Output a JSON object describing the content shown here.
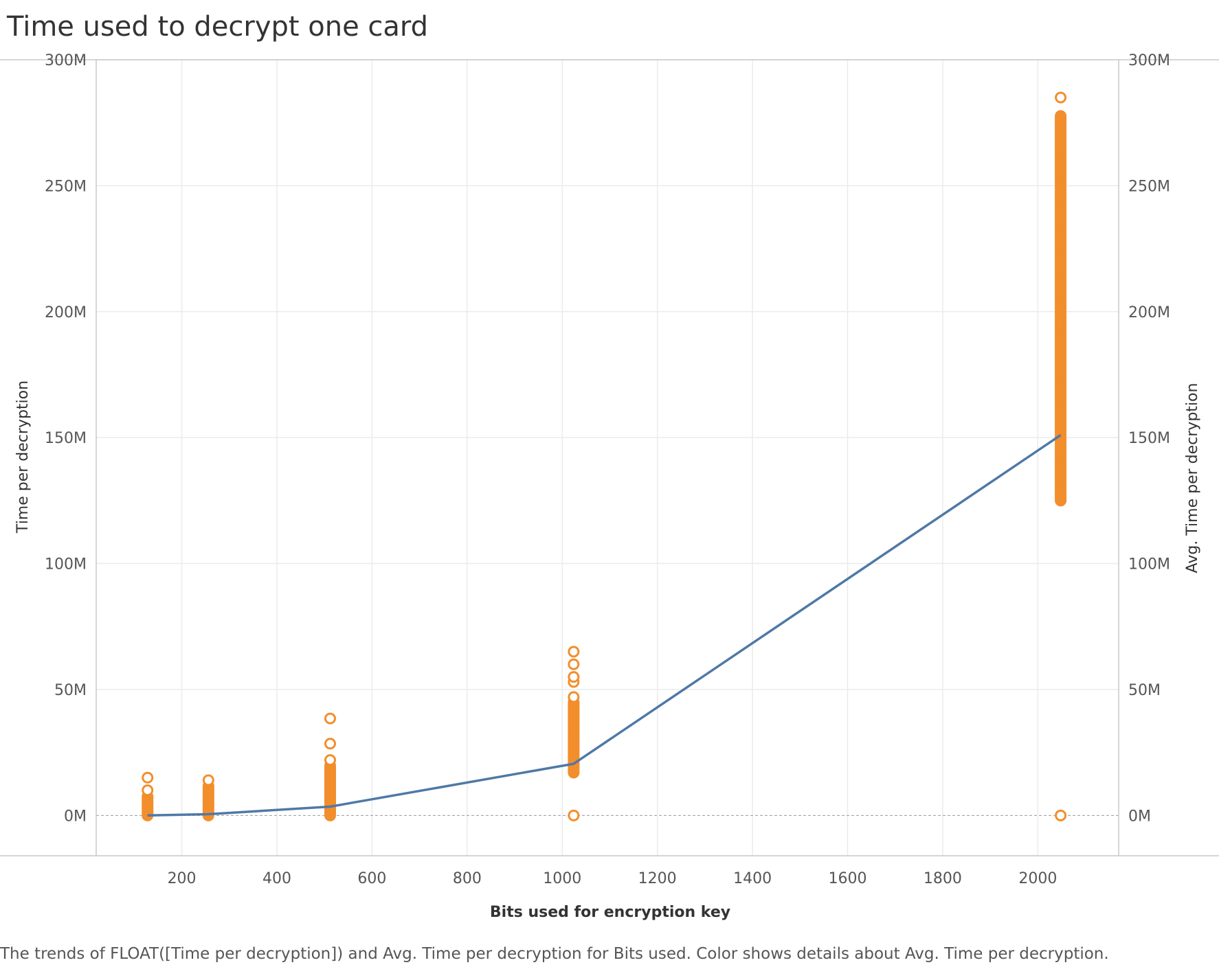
{
  "page_title": "Time used to decrypt one card",
  "caption": "The trends of FLOAT([Time per decryption]) and Avg. Time per decryption for Bits used.  Color shows details about Avg. Time per decryption.",
  "chart_data": {
    "type": "scatter",
    "title": "Time used to decrypt one card",
    "xlabel": "Bits used for encryption key",
    "ylabel": "Time per decryption",
    "y2label": "Avg. Time per decryption",
    "xlim": [
      20,
      2170
    ],
    "ylim": [
      -16000000,
      300000000
    ],
    "x_ticks": [
      200,
      400,
      600,
      800,
      1000,
      1200,
      1400,
      1600,
      1800,
      2000
    ],
    "y_ticks": [
      0,
      50000000,
      100000000,
      150000000,
      200000000,
      250000000,
      300000000
    ],
    "y_tick_labels": [
      "0M",
      "50M",
      "100M",
      "150M",
      "200M",
      "250M",
      "300M"
    ],
    "grid": true,
    "colors": {
      "points": "#f28e2b",
      "line": "#4e79a7",
      "grid": "#ebebeb",
      "axis": "#c8c8c8"
    },
    "series": [
      {
        "mark": "circle-points",
        "groups": [
          {
            "x": 128,
            "range": [
              0,
              8000000
            ],
            "outliers": [
              15000000,
              10000000
            ]
          },
          {
            "x": 256,
            "range": [
              0,
              12000000
            ],
            "outliers": [
              14000000
            ]
          },
          {
            "x": 512,
            "range": [
              0,
              20000000
            ],
            "outliers": [
              22000000,
              28500000,
              38500000
            ]
          },
          {
            "x": 1024,
            "range": [
              17000000,
              45000000
            ],
            "outliers": [
              0,
              47000000,
              53000000,
              55000000,
              60000000,
              65000000
            ]
          },
          {
            "x": 2048,
            "range": [
              125000000,
              278000000
            ],
            "outliers": [
              0,
              285000000
            ]
          }
        ]
      },
      {
        "name": "Avg. Time per decryption",
        "mark": "line",
        "x": [
          128,
          256,
          512,
          1024,
          2048
        ],
        "y": [
          0,
          500000,
          3500000,
          20500000,
          151000000
        ]
      }
    ]
  }
}
